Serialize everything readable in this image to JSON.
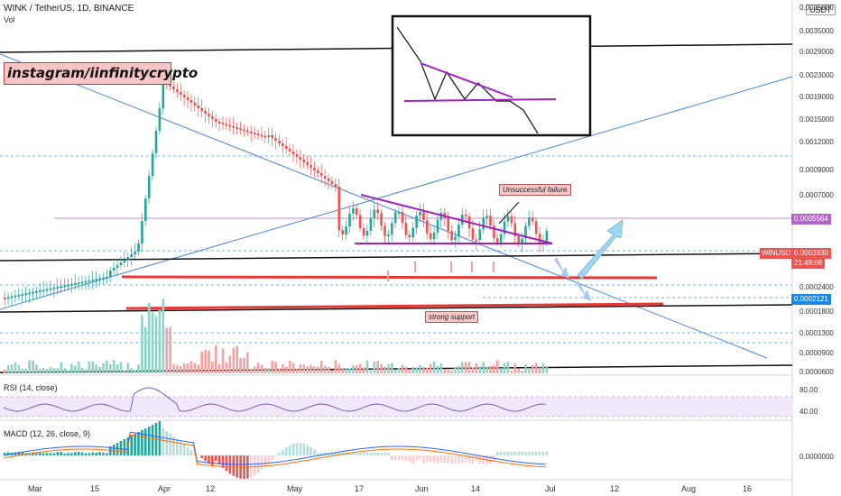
{
  "header": {
    "symbol_line": "WINK / TetherUS, 1D, BINANCE",
    "vol_label": "Vol"
  },
  "watermark": "instagram/iinfinitycrypto",
  "currency_button": "USDT",
  "price_axis": [
    "0.0035000",
    "0.0029000",
    "0.0023000",
    "0.0019000",
    "0.0015000",
    "0.0012000",
    "0.0009000",
    "0.0007000",
    "0.0002400",
    "0.0001800",
    "0.0001300",
    "0.0000900",
    "0.0000600"
  ],
  "price_tags": {
    "level_1": "0.0005564",
    "current_price": "0.0003830",
    "countdown": "21:49:08",
    "level_2": "0.0002121",
    "symbol": "WINUSDT"
  },
  "annotations": {
    "failure": "Unsuccessful failure",
    "support": "strong support"
  },
  "rsi": {
    "label": "RSI (14, close)",
    "levels": [
      "80.00",
      "40.00"
    ]
  },
  "macd": {
    "label": "MACD (12, 26, close, 9)",
    "zero": "0.0000000"
  },
  "time_axis": [
    "Mar",
    "15",
    "Apr",
    "12",
    "May",
    "17",
    "Jun",
    "14",
    "Jul",
    "12",
    "Aug",
    "16"
  ],
  "colors": {
    "up": "#26a69a",
    "down": "#ef5350",
    "trendline": "#4a86d8",
    "pattern": "#a020c0",
    "support": "#e53935",
    "level": "#b266c8"
  }
}
